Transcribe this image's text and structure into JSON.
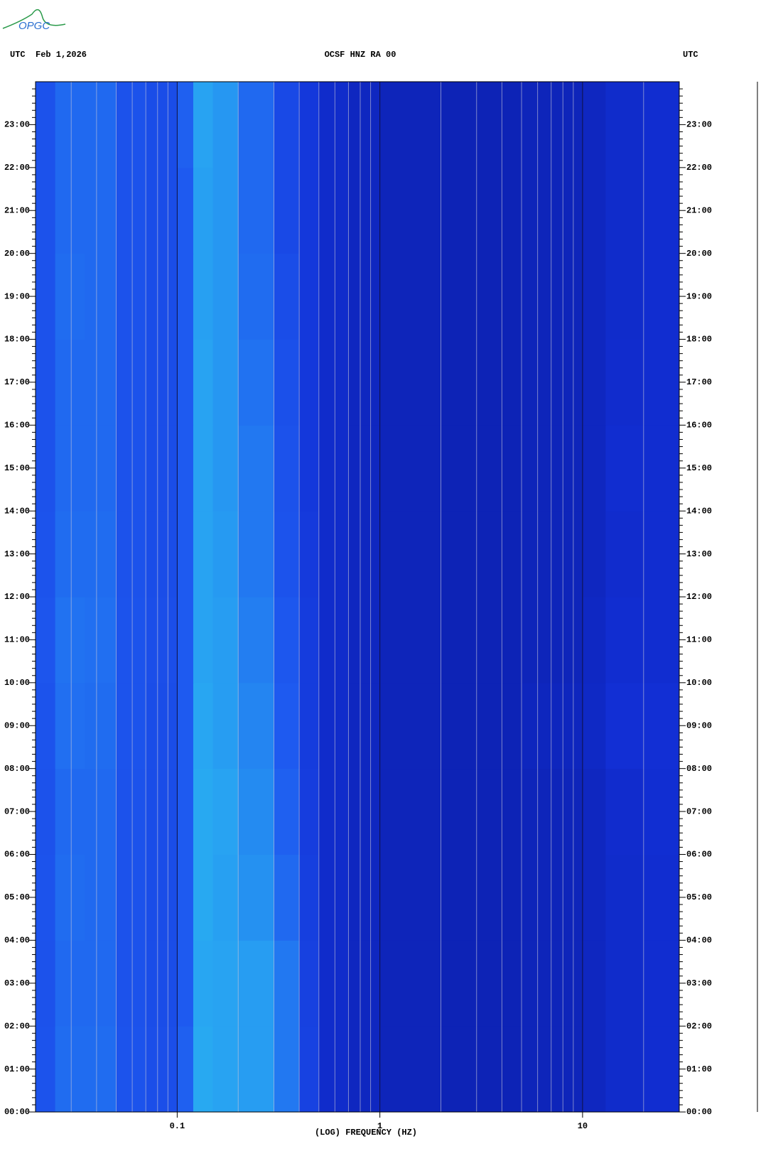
{
  "chart_data": {
    "type": "heatmap",
    "logo": "OPGC",
    "title": "OCSF HNZ RA 00",
    "left_label": "UTC",
    "date": "Feb 1,2026",
    "right_label": "UTC",
    "xlabel": "(LOG) FREQUENCY (HZ)",
    "xlog": true,
    "xlim": [
      0.02,
      30
    ],
    "xticks": [
      0.1,
      1,
      10
    ],
    "xminor_ticks": [
      0.03,
      0.04,
      0.05,
      0.06,
      0.07,
      0.08,
      0.09,
      0.2,
      0.3,
      0.4,
      0.5,
      0.6,
      0.7,
      0.8,
      0.9,
      2,
      3,
      4,
      5,
      6,
      7,
      8,
      9,
      20
    ],
    "ylim": [
      0,
      24
    ],
    "yticks": [
      {
        "value": 0,
        "label": "00:00"
      },
      {
        "value": 1,
        "label": "01:00"
      },
      {
        "value": 2,
        "label": "02:00"
      },
      {
        "value": 3,
        "label": "03:00"
      },
      {
        "value": 4,
        "label": "04:00"
      },
      {
        "value": 5,
        "label": "05:00"
      },
      {
        "value": 6,
        "label": "06:00"
      },
      {
        "value": 7,
        "label": "07:00"
      },
      {
        "value": 8,
        "label": "08:00"
      },
      {
        "value": 9,
        "label": "09:00"
      },
      {
        "value": 10,
        "label": "10:00"
      },
      {
        "value": 11,
        "label": "11:00"
      },
      {
        "value": 12,
        "label": "12:00"
      },
      {
        "value": 13,
        "label": "13:00"
      },
      {
        "value": 14,
        "label": "14:00"
      },
      {
        "value": 15,
        "label": "15:00"
      },
      {
        "value": 16,
        "label": "16:00"
      },
      {
        "value": 17,
        "label": "17:00"
      },
      {
        "value": 18,
        "label": "18:00"
      },
      {
        "value": 19,
        "label": "19:00"
      },
      {
        "value": 20,
        "label": "20:00"
      },
      {
        "value": 21,
        "label": "21:00"
      },
      {
        "value": 22,
        "label": "22:00"
      },
      {
        "value": 23,
        "label": "23:00"
      }
    ],
    "y_minor_divisions": 6,
    "grid": true,
    "colormap": [
      "#0a1aa0",
      "#1230d6",
      "#1e5af0",
      "#28a6f2",
      "#32f0e0"
    ],
    "zlim": [
      0,
      1
    ],
    "x_edges": [
      0.02,
      0.025,
      0.035,
      0.05,
      0.07,
      0.1,
      0.12,
      0.15,
      0.2,
      0.3,
      0.4,
      0.5,
      0.7,
      1,
      2,
      5,
      10,
      13,
      20,
      30
    ],
    "y_edges": [
      0,
      2,
      4,
      6,
      8,
      10,
      12,
      14,
      16,
      18,
      20,
      22,
      24
    ],
    "z": [
      [
        0.46,
        0.56,
        0.56,
        0.46,
        0.43,
        0.52,
        0.76,
        0.74,
        0.72,
        0.6,
        0.36,
        0.2,
        0.15,
        0.12,
        0.1,
        0.12,
        0.15,
        0.2,
        0.22
      ],
      [
        0.45,
        0.55,
        0.55,
        0.45,
        0.42,
        0.5,
        0.75,
        0.74,
        0.72,
        0.6,
        0.35,
        0.2,
        0.15,
        0.12,
        0.1,
        0.12,
        0.15,
        0.2,
        0.22
      ],
      [
        0.46,
        0.56,
        0.55,
        0.45,
        0.42,
        0.5,
        0.76,
        0.73,
        0.68,
        0.55,
        0.34,
        0.2,
        0.15,
        0.12,
        0.1,
        0.12,
        0.15,
        0.2,
        0.22
      ],
      [
        0.45,
        0.55,
        0.55,
        0.45,
        0.42,
        0.5,
        0.76,
        0.74,
        0.66,
        0.52,
        0.33,
        0.2,
        0.15,
        0.12,
        0.1,
        0.12,
        0.15,
        0.21,
        0.23
      ],
      [
        0.46,
        0.57,
        0.56,
        0.46,
        0.42,
        0.5,
        0.75,
        0.72,
        0.64,
        0.5,
        0.32,
        0.2,
        0.15,
        0.12,
        0.1,
        0.14,
        0.17,
        0.24,
        0.24
      ],
      [
        0.47,
        0.58,
        0.57,
        0.46,
        0.43,
        0.5,
        0.74,
        0.72,
        0.62,
        0.48,
        0.32,
        0.2,
        0.15,
        0.12,
        0.1,
        0.12,
        0.16,
        0.22,
        0.22
      ],
      [
        0.46,
        0.56,
        0.56,
        0.45,
        0.42,
        0.5,
        0.74,
        0.71,
        0.6,
        0.46,
        0.31,
        0.2,
        0.15,
        0.12,
        0.1,
        0.12,
        0.15,
        0.21,
        0.22
      ],
      [
        0.45,
        0.55,
        0.55,
        0.45,
        0.42,
        0.5,
        0.74,
        0.7,
        0.6,
        0.45,
        0.3,
        0.2,
        0.15,
        0.12,
        0.1,
        0.12,
        0.15,
        0.22,
        0.22
      ],
      [
        0.45,
        0.55,
        0.55,
        0.45,
        0.42,
        0.5,
        0.74,
        0.7,
        0.58,
        0.44,
        0.3,
        0.2,
        0.15,
        0.12,
        0.1,
        0.12,
        0.15,
        0.21,
        0.22
      ],
      [
        0.45,
        0.56,
        0.55,
        0.45,
        0.42,
        0.5,
        0.73,
        0.7,
        0.56,
        0.42,
        0.3,
        0.2,
        0.15,
        0.12,
        0.1,
        0.12,
        0.15,
        0.2,
        0.22
      ],
      [
        0.45,
        0.55,
        0.55,
        0.45,
        0.42,
        0.5,
        0.73,
        0.7,
        0.55,
        0.4,
        0.3,
        0.2,
        0.15,
        0.12,
        0.1,
        0.12,
        0.15,
        0.2,
        0.22
      ],
      [
        0.45,
        0.55,
        0.55,
        0.45,
        0.42,
        0.52,
        0.74,
        0.7,
        0.55,
        0.4,
        0.3,
        0.2,
        0.15,
        0.12,
        0.1,
        0.12,
        0.15,
        0.2,
        0.22
      ]
    ]
  }
}
